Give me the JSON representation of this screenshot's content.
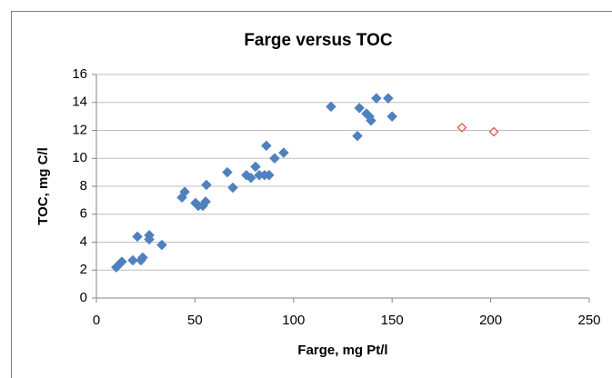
{
  "chart_data": {
    "type": "scatter",
    "title": "Farge versus TOC",
    "x_label": "Farge, mg Pt/l",
    "y_label": "TOC, mg C/l",
    "xlim": [
      0,
      250
    ],
    "xticks": [
      0,
      50,
      100,
      150,
      200,
      250
    ],
    "ylim": [
      0,
      16
    ],
    "yticks": [
      0,
      2,
      4,
      6,
      8,
      10,
      12,
      14,
      16
    ],
    "grid": true,
    "series": [
      {
        "color": "#4f81bd",
        "marker": "diamond",
        "x": [
          10.1,
          11.5,
          12.9,
          18.5,
          20.8,
          22.6,
          23.5,
          26.8,
          26.8,
          33.2,
          43.4,
          44.8,
          50.3,
          51.7,
          54,
          55.4,
          55.8,
          66.4,
          69.2,
          76.1,
          78.4,
          80.7,
          82.6,
          85.3,
          86.2,
          87.6,
          90.4,
          95,
          119,
          132.4,
          133.4,
          137,
          138.4,
          139.3,
          142,
          148,
          150
        ],
        "values": [
          2.2,
          2.4,
          2.6,
          2.7,
          4.4,
          2.7,
          2.9,
          4.5,
          4.2,
          3.8,
          7.2,
          7.6,
          6.8,
          6.6,
          6.6,
          6.9,
          8.1,
          9.0,
          7.9,
          8.8,
          8.6,
          9.4,
          8.8,
          8.8,
          10.9,
          8.8,
          10.0,
          10.4,
          13.7,
          11.6,
          13.6,
          13.2,
          13.0,
          12.7,
          14.3,
          14.3,
          13.0
        ]
      },
      {
        "color": "#e0483f",
        "marker": "diamond-open",
        "x": [
          185.4,
          201.6
        ],
        "values": [
          12.2,
          11.9
        ]
      }
    ]
  }
}
